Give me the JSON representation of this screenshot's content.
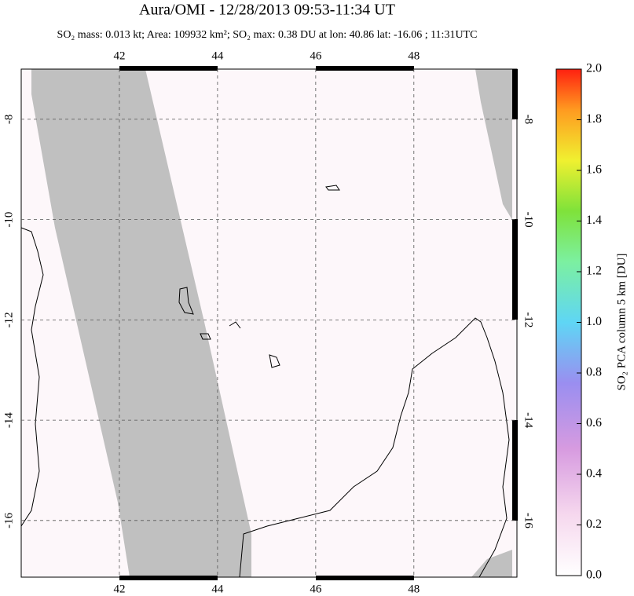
{
  "title": "Aura/OMI - 12/28/2013 09:53-11:34 UT",
  "subtitle": "SO₂ mass: 0.013 kt; Area: 109932 km²; SO₂ max: 0.38 DU at lon: 40.86 lat: -16.06 ; 11:31UTC",
  "map": {
    "xlim": [
      40,
      50.1
    ],
    "ylim": [
      -17.13,
      -7
    ],
    "xticks": [
      42,
      44,
      46,
      48
    ],
    "yticks": [
      -8,
      -10,
      -12,
      -14,
      -16
    ]
  },
  "colorbar": {
    "label": "SO₂ PCA column 5 km [DU]",
    "lim": [
      0,
      2
    ],
    "ticks": [
      {
        "value": 0,
        "label": "0.0"
      },
      {
        "value": 0.2,
        "label": "0.2"
      },
      {
        "value": 0.4,
        "label": "0.4"
      },
      {
        "value": 0.6,
        "label": "0.6"
      },
      {
        "value": 0.8,
        "label": "0.8"
      },
      {
        "value": 1.0,
        "label": "1.0"
      },
      {
        "value": 1.2,
        "label": "1.2"
      },
      {
        "value": 1.4,
        "label": "1.4"
      },
      {
        "value": 1.6,
        "label": "1.6"
      },
      {
        "value": 1.8,
        "label": "1.8"
      },
      {
        "value": 2.0,
        "label": "2.0"
      }
    ]
  }
}
